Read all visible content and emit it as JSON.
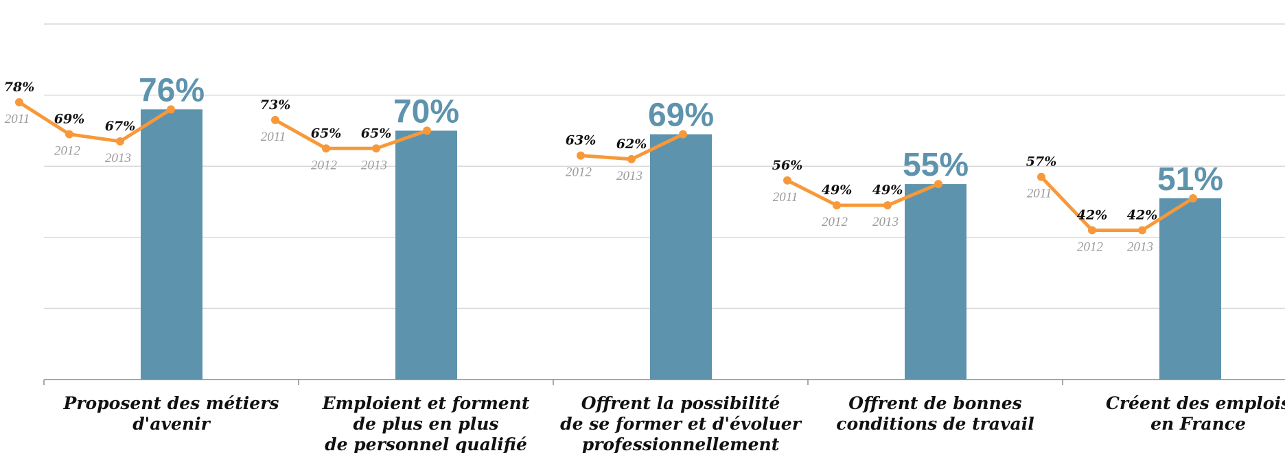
{
  "chart_data": {
    "type": "bar",
    "categories": [
      [
        "Proposent des métiers",
        "d'avenir"
      ],
      [
        "Emploient et forment",
        "de plus en plus",
        "de personnel qualifié"
      ],
      [
        "Offrent la possibilité",
        "de se former et d'évoluer",
        "professionnellement"
      ],
      [
        "Offrent de bonnes",
        "conditions de travail"
      ],
      [
        "Créent des emplois",
        "en France"
      ]
    ],
    "values": [
      76,
      70,
      69,
      55,
      51
    ],
    "value_labels": [
      "76%",
      "70%",
      "69%",
      "55%",
      "51%"
    ],
    "trend": {
      "years": [
        "2011",
        "2012",
        "2013"
      ],
      "values": [
        [
          78,
          69,
          67
        ],
        [
          73,
          65,
          65
        ],
        [
          63,
          62
        ],
        [
          56,
          49,
          49
        ],
        [
          57,
          42,
          42
        ]
      ],
      "labels": [
        [
          "78%",
          "69%",
          "67%"
        ],
        [
          "73%",
          "65%",
          "65%"
        ],
        [
          "63%",
          "62%"
        ],
        [
          "56%",
          "49%",
          "49%"
        ],
        [
          "57%",
          "42%",
          "42%"
        ]
      ],
      "year_labels": [
        [
          "2011",
          "2012",
          "2013"
        ],
        [
          "2011",
          "2012",
          "2013"
        ],
        [
          "2012",
          "2013"
        ],
        [
          "2011",
          "2012",
          "2013"
        ],
        [
          "2011",
          "2012",
          "2013"
        ]
      ]
    },
    "ylim": [
      0,
      100
    ],
    "grid": true,
    "legend": "none",
    "colors": {
      "bar": "#5e93ad",
      "line": "#f7993a",
      "grid": "#d9d9d9",
      "axis": "#8c8c8c"
    }
  }
}
